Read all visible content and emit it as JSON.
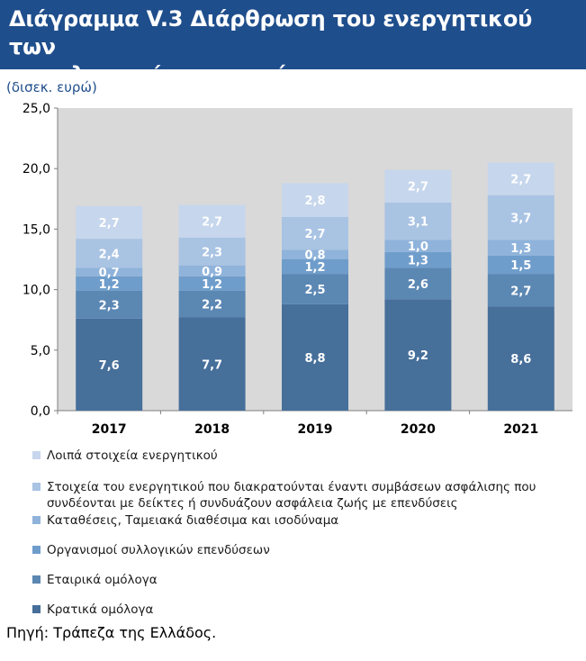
{
  "header": {
    "title_line1": "Διάγραμμα V.3 Διάρθρωση του ενεργητικού των",
    "title_line2": "ασφαλιστικών επιχειρήσεων"
  },
  "units": "(δισεκ. ευρώ)",
  "source": "Πηγή: Τράπεζα της Ελλάδος.",
  "chart_data": {
    "type": "bar",
    "stacked": true,
    "categories": [
      "2017",
      "2018",
      "2019",
      "2020",
      "2021"
    ],
    "series": [
      {
        "name": "Κρατικά ομόλογα",
        "color": "#466f9a",
        "label_color": "#ffffff",
        "values": [
          7.6,
          7.7,
          8.8,
          9.2,
          8.6
        ]
      },
      {
        "name": "Εταιρικά ομόλογα",
        "color": "#5b87b3",
        "label_color": "#ffffff",
        "values": [
          2.3,
          2.2,
          2.5,
          2.6,
          2.7
        ]
      },
      {
        "name": "Οργανισμοί συλλογικών επενδύσεων",
        "color": "#6f9dcb",
        "label_color": "#ffffff",
        "values": [
          1.2,
          1.2,
          1.2,
          1.3,
          1.5
        ]
      },
      {
        "name": "Καταθέσεις, Ταμειακά διαθέσιμα και ισοδύναμα",
        "color": "#8fb3da",
        "label_color": "#ffffff",
        "values": [
          0.7,
          0.9,
          0.8,
          1.0,
          1.3
        ]
      },
      {
        "name": "Στοιχεία του ενεργητικού που διακρατούνται έναντι συμβάσεων ασφάλισης που συνδέονται με δείκτες ή συνδυάζουν ασφάλεια ζωής με επενδύσεις",
        "color": "#a9c3e3",
        "label_color": "#ffffff",
        "values": [
          2.4,
          2.3,
          2.7,
          3.1,
          3.7
        ]
      },
      {
        "name": "Λοιπά στοιχεία ενεργητικού",
        "color": "#c6d6ec",
        "label_color": "#ffffff",
        "values": [
          2.7,
          2.7,
          2.8,
          2.7,
          2.7
        ]
      }
    ],
    "value_labels": [
      [
        "7,6",
        "7,7",
        "8,8",
        "9,2",
        "8,6"
      ],
      [
        "2,3",
        "2,2",
        "2,5",
        "2,6",
        "2,7"
      ],
      [
        "1,2",
        "1,2",
        "1,2",
        "1,3",
        "1,5"
      ],
      [
        "0,7",
        "0,9",
        "0,8",
        "1,0",
        "1,3"
      ],
      [
        "2,4",
        "2,3",
        "2,7",
        "3,1",
        "3,7"
      ],
      [
        "2,7",
        "2,7",
        "2,8",
        "2,7",
        "2,7"
      ]
    ],
    "y_ticks": [
      "0,0",
      "5,0",
      "10,0",
      "15,0",
      "20,0",
      "25,0"
    ],
    "ylim": [
      0,
      25
    ],
    "plot_background": "#d9d9d9",
    "grid": false,
    "legend_position": "bottom"
  }
}
